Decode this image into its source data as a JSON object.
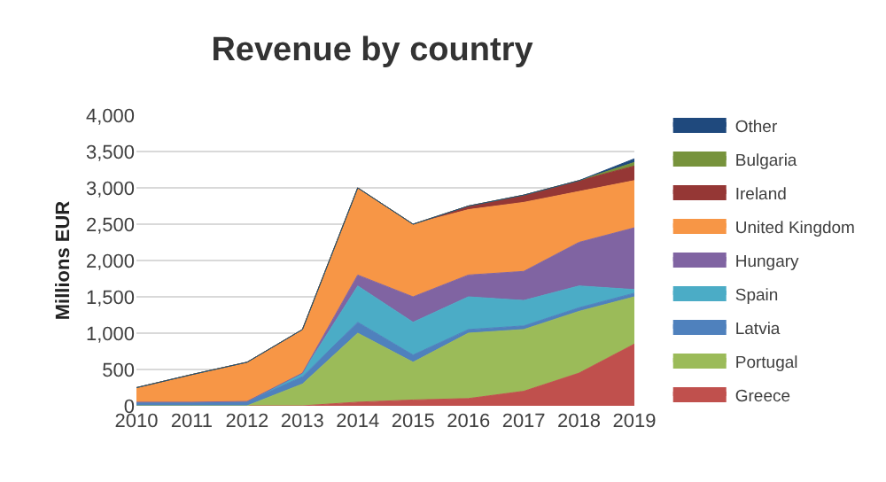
{
  "chart_data": {
    "type": "area",
    "stacked": true,
    "title": "Revenue by country",
    "ylabel": "Millions EUR",
    "x": [
      2010,
      2011,
      2012,
      2013,
      2014,
      2015,
      2016,
      2017,
      2018,
      2019
    ],
    "xlim": [
      2010,
      2019
    ],
    "xticks": [
      2010,
      2011,
      2012,
      2013,
      2014,
      2015,
      2016,
      2017,
      2018,
      2019
    ],
    "ylim": [
      0,
      4000
    ],
    "yticks": [
      0,
      500,
      {
        "value": 1000,
        "label": "1,000"
      },
      {
        "value": 1500,
        "label": "1,500"
      },
      {
        "value": 2000,
        "label": "2,000"
      },
      {
        "value": 2500,
        "label": "2,500"
      },
      {
        "value": 3000,
        "label": "3,000"
      },
      {
        "value": 3500,
        "label": "3,500"
      },
      {
        "value": 4000,
        "label": "4,000"
      }
    ],
    "grid": "y",
    "legend": "right",
    "series": [
      {
        "name": "Greece",
        "color": "#c0504d",
        "values": [
          0,
          0,
          0,
          0,
          50,
          80,
          100,
          200,
          450,
          850
        ]
      },
      {
        "name": "Portugal",
        "color": "#9bbb59",
        "values": [
          0,
          0,
          0,
          300,
          950,
          520,
          900,
          850,
          850,
          650
        ]
      },
      {
        "name": "Latvia",
        "color": "#4f81bd",
        "values": [
          50,
          50,
          60,
          100,
          150,
          100,
          50,
          50,
          50,
          50
        ]
      },
      {
        "name": "Spain",
        "color": "#4bacc6",
        "values": [
          0,
          0,
          0,
          50,
          500,
          450,
          450,
          350,
          300,
          50
        ]
      },
      {
        "name": "Hungary",
        "color": "#8064a2",
        "values": [
          0,
          0,
          0,
          0,
          150,
          350,
          300,
          400,
          600,
          850
        ]
      },
      {
        "name": "United Kingdom",
        "color": "#f79646",
        "values": [
          200,
          380,
          540,
          600,
          1200,
          1000,
          900,
          950,
          700,
          650
        ]
      },
      {
        "name": "Ireland",
        "color": "#953735",
        "values": [
          0,
          0,
          0,
          0,
          0,
          0,
          50,
          100,
          150,
          200
        ]
      },
      {
        "name": "Bulgaria",
        "color": "#77933c",
        "values": [
          0,
          0,
          0,
          0,
          0,
          0,
          0,
          0,
          0,
          50
        ]
      },
      {
        "name": "Other",
        "color": "#1f497d",
        "values": [
          0,
          0,
          0,
          0,
          0,
          0,
          0,
          0,
          0,
          50
        ]
      }
    ]
  }
}
